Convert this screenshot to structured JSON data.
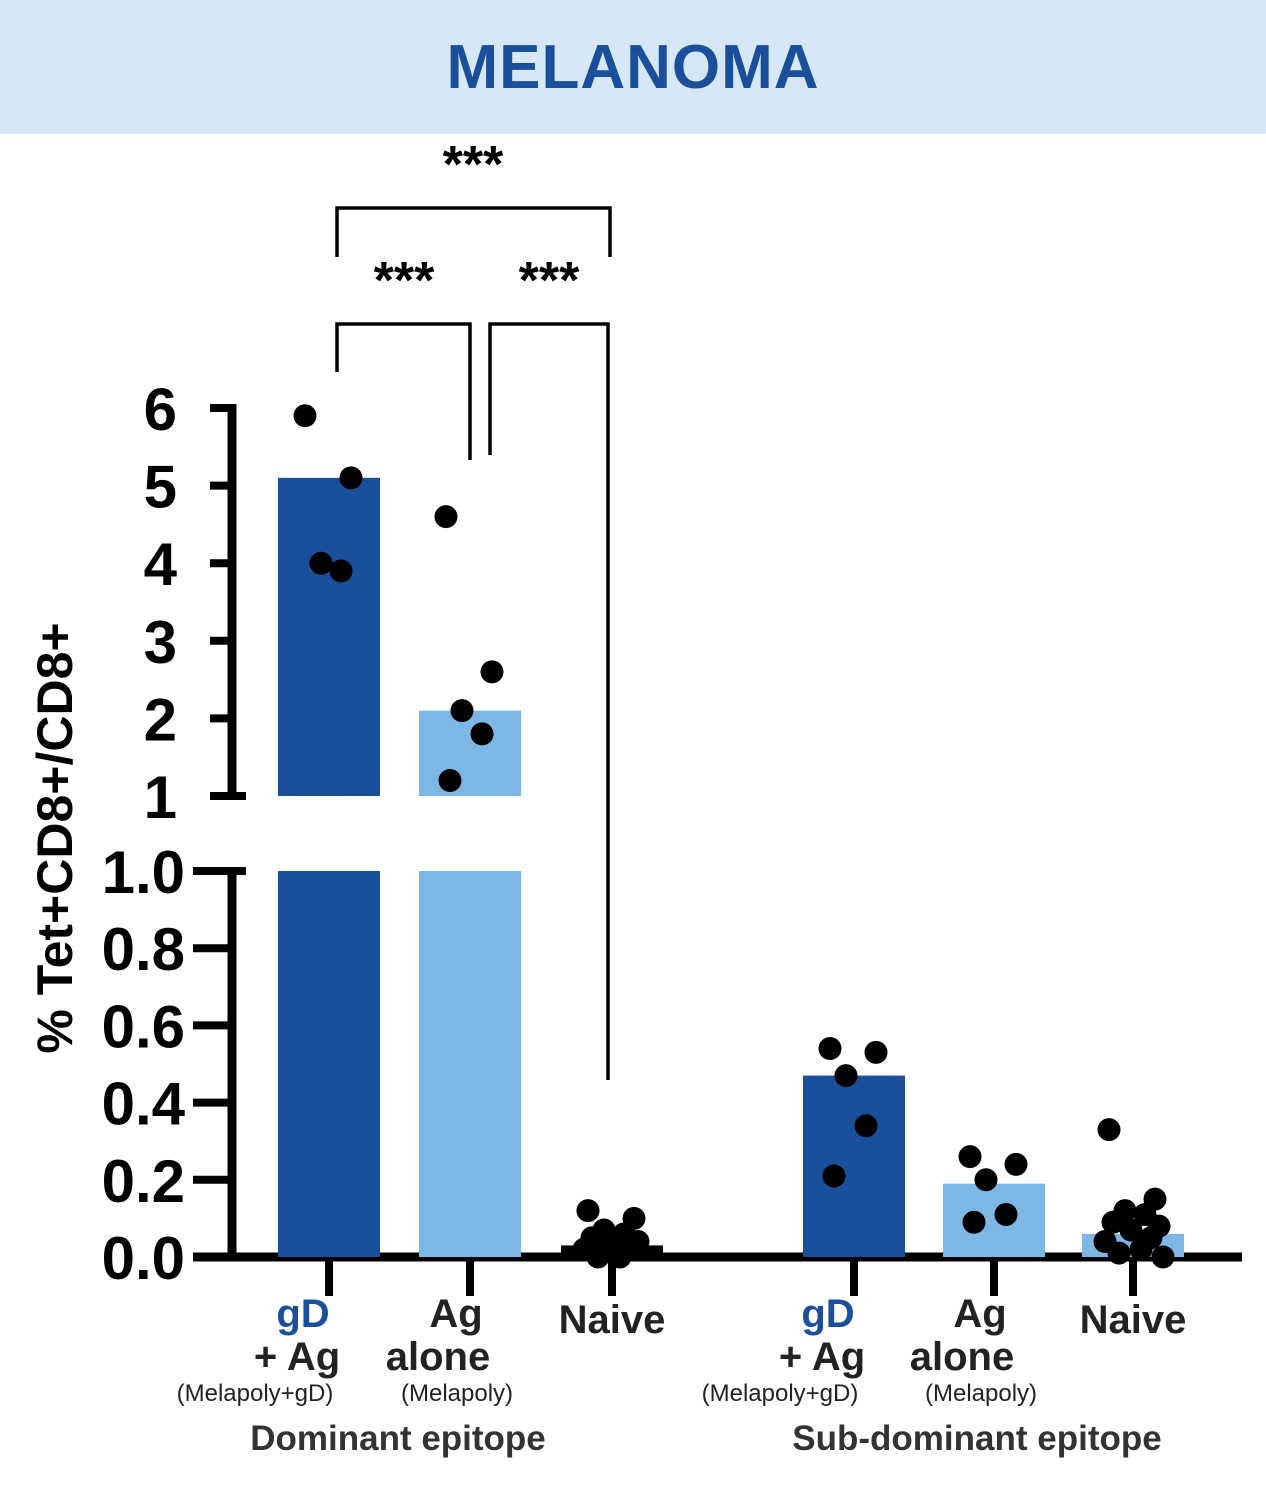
{
  "header": {
    "title": "MELANOMA"
  },
  "colors": {
    "banner_bg": "#d6e8f7",
    "title": "#1a4f9c",
    "dark_bar": "#1a4f9c",
    "light_bar": "#7db7e6",
    "points": "#000000"
  },
  "chart_data": {
    "type": "bar",
    "title": "",
    "ylabel": "% Tet+CD8+/CD8+",
    "y_axis_broken": true,
    "y_segments": [
      {
        "range": [
          0,
          1.0
        ],
        "ticks": [
          "0.0",
          "0.2",
          "0.4",
          "0.6",
          "0.8",
          "1.0"
        ]
      },
      {
        "range": [
          1,
          6
        ],
        "ticks": [
          "1",
          "2",
          "3",
          "4",
          "5",
          "6"
        ]
      }
    ],
    "categories": [
      {
        "line1": "gD",
        "line2": "+ Ag",
        "sub": "(Melapoly+gD)"
      },
      {
        "line1": "Ag",
        "line2": "alone",
        "sub": "(Melapoly)"
      },
      {
        "line1": "Naive",
        "line2": "",
        "sub": ""
      },
      {
        "line1": "gD",
        "line2": "+ Ag",
        "sub": "(Melapoly+gD)"
      },
      {
        "line1": "Ag",
        "line2": "alone",
        "sub": "(Melapoly)"
      },
      {
        "line1": "Naive",
        "line2": "",
        "sub": ""
      }
    ],
    "groups": [
      "Dominant epitope",
      "Sub-dominant epitope"
    ],
    "bars": [
      {
        "value": 5.1,
        "color": "dark",
        "points": [
          5.9,
          5.1,
          4.0,
          3.9
        ]
      },
      {
        "value": 2.1,
        "color": "light",
        "points": [
          4.6,
          2.6,
          2.1,
          1.8,
          1.2
        ]
      },
      {
        "value": 0.03,
        "color": "none",
        "points": [
          0.12,
          0.1,
          0.07,
          0.06,
          0.05,
          0.04,
          0.03,
          0.02,
          0.02,
          0.0,
          0.0
        ]
      },
      {
        "value": 0.47,
        "color": "dark",
        "points": [
          0.54,
          0.53,
          0.47,
          0.34,
          0.21
        ]
      },
      {
        "value": 0.19,
        "color": "light",
        "points": [
          0.26,
          0.24,
          0.2,
          0.11,
          0.09
        ]
      },
      {
        "value": 0.06,
        "color": "light",
        "points": [
          0.33,
          0.15,
          0.12,
          0.11,
          0.09,
          0.08,
          0.07,
          0.05,
          0.04,
          0.02,
          0.01,
          0.0
        ]
      }
    ],
    "significance": [
      {
        "label": "***",
        "from": 0,
        "to": 2
      },
      {
        "label": "***",
        "from": 0,
        "to": 1
      },
      {
        "label": "***",
        "from": 1,
        "to": 2
      }
    ]
  }
}
